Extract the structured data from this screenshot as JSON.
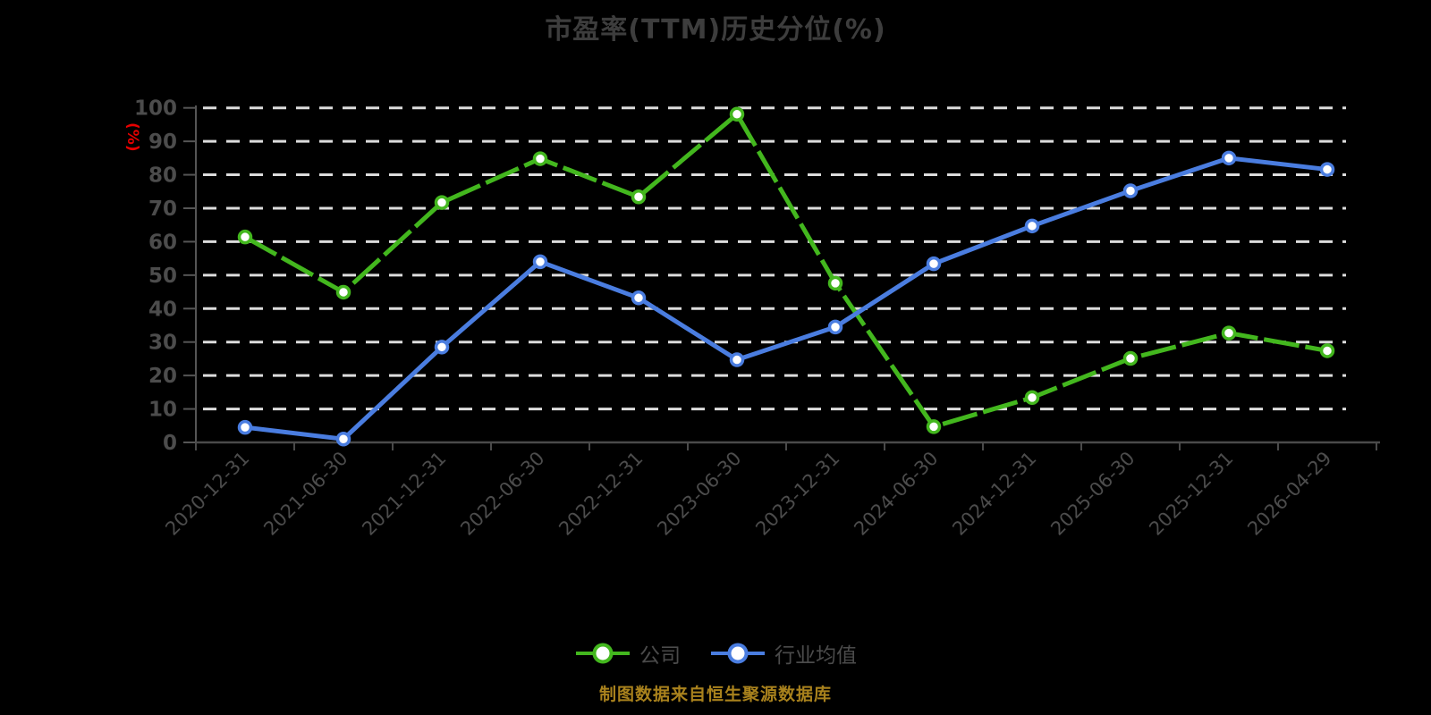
{
  "title": "市盈率(TTM)历史分位(%)",
  "y_axis_unit": "(%)",
  "footer_note": "制图数据来自恒生聚源数据库",
  "legend": [
    {
      "label": "公司",
      "color": "#43b71e"
    },
    {
      "label": "行业均值",
      "color": "#4a7de0"
    }
  ],
  "colors": {
    "background": "#000000",
    "title_text": "#3d3d3d",
    "axis_line": "#555555",
    "x_axis_line": "#4a4a4a",
    "tick_label": "#4c4c4c",
    "gridline": "#dcdcdc",
    "unit_label": "#e60000",
    "footer_text": "#a9821d",
    "marker_fill": "#ffffff",
    "company_green": "#43b71e",
    "industry_blue": "#4a7de0"
  },
  "chart_data": {
    "type": "line",
    "title": "市盈率(TTM)历史分位(%)",
    "ylabel": "(%)",
    "ylim": [
      0,
      100
    ],
    "yticks": [
      0,
      10,
      20,
      30,
      40,
      50,
      60,
      70,
      80,
      90,
      100
    ],
    "grid": "horizontal-dashed-white-on-black",
    "legend_position": "bottom",
    "categories": [
      "2020-12-31",
      "2021-06-30",
      "2021-12-31",
      "2022-06-30",
      "2022-12-31",
      "2023-06-30",
      "2023-12-31",
      "2024-06-30",
      "2024-12-31",
      "2025-06-30",
      "2025-12-31",
      "2026-04-29"
    ],
    "series": [
      {
        "name": "公司",
        "color": "#43b71e",
        "line_style": "long-dash",
        "marker": "circle-white-fill",
        "values": [
          61.4,
          44.9,
          71.7,
          84.8,
          73.4,
          98.1,
          47.6,
          4.7,
          13.4,
          25.1,
          32.7,
          27.4
        ]
      },
      {
        "name": "行业均值",
        "color": "#4a7de0",
        "line_style": "solid",
        "marker": "circle-white-fill",
        "values": [
          4.5,
          1.0,
          28.5,
          54.0,
          43.2,
          24.7,
          34.5,
          53.4,
          64.7,
          75.2,
          85.0,
          81.6
        ]
      }
    ]
  }
}
